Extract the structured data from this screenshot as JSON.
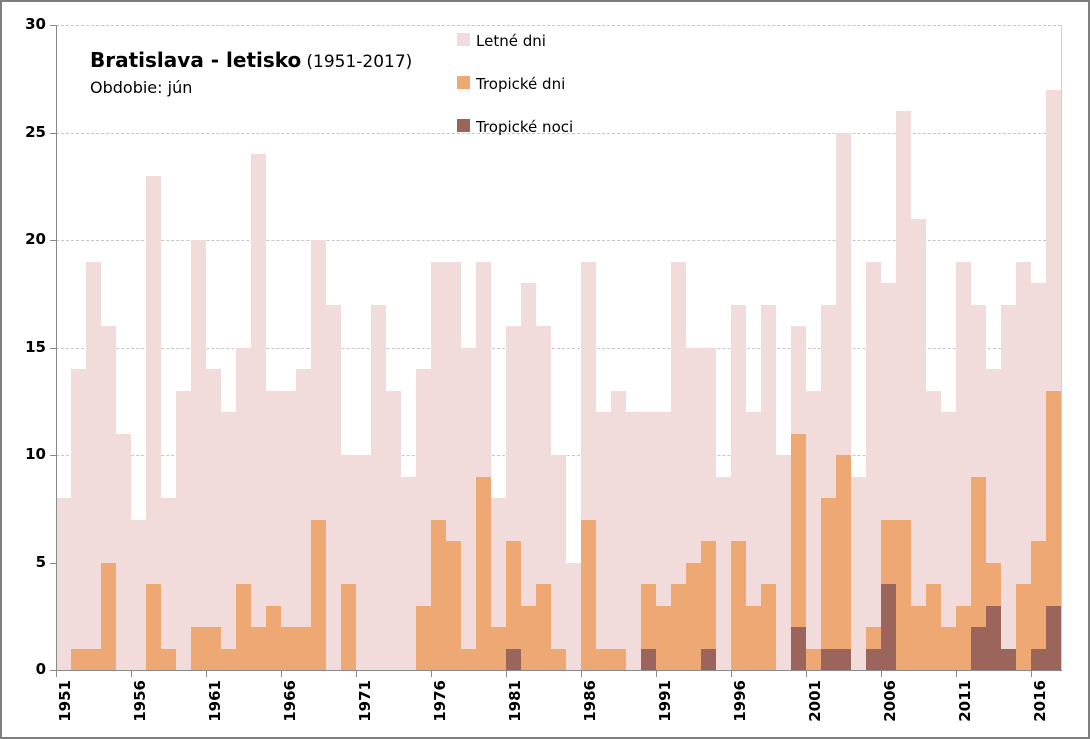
{
  "title": {
    "main": "Bratislava - letisko",
    "range": "(1951-2017)",
    "subtitle": "Obdobie: jún"
  },
  "legend": {
    "items": [
      {
        "label": "Letné dni",
        "color": "#f2dcdb"
      },
      {
        "label": "Tropické dni",
        "color": "#eea873"
      },
      {
        "label": "Tropické noci",
        "color": "#9b655c"
      }
    ]
  },
  "colors": {
    "letne": "#f2dcdb",
    "tropicke_dni": "#eea873",
    "tropicke_noci": "#9b655c",
    "gridline": "#c6c6c6",
    "axis": "#898989",
    "text": "#000000"
  },
  "chart_data": {
    "type": "bar",
    "overlay": true,
    "title": "Bratislava - letisko (1951-2017)",
    "subtitle": "Obdobie: jún",
    "xlabel": "",
    "ylabel": "",
    "ylim": [
      0,
      30
    ],
    "y_ticks": [
      0,
      5,
      10,
      15,
      20,
      25,
      30
    ],
    "x_tick_labels": [
      "1951",
      "1956",
      "1961",
      "1966",
      "1971",
      "1976",
      "1981",
      "1986",
      "1991",
      "1996",
      "2001",
      "2006",
      "2011",
      "2016"
    ],
    "x_tick_interval": 5,
    "grid": "horizontal-dashed",
    "legend_position": "top-center",
    "categories": [
      1951,
      1952,
      1953,
      1954,
      1955,
      1956,
      1957,
      1958,
      1959,
      1960,
      1961,
      1962,
      1963,
      1964,
      1965,
      1966,
      1967,
      1968,
      1969,
      1970,
      1971,
      1972,
      1973,
      1974,
      1975,
      1976,
      1977,
      1978,
      1979,
      1980,
      1981,
      1982,
      1983,
      1984,
      1985,
      1986,
      1987,
      1988,
      1989,
      1990,
      1991,
      1992,
      1993,
      1994,
      1995,
      1996,
      1997,
      1998,
      1999,
      2000,
      2001,
      2002,
      2003,
      2004,
      2005,
      2006,
      2007,
      2008,
      2009,
      2010,
      2011,
      2012,
      2013,
      2014,
      2015,
      2016,
      2017
    ],
    "series": [
      {
        "name": "Letné dni",
        "values": [
          8,
          14,
          19,
          16,
          11,
          7,
          23,
          8,
          13,
          20,
          14,
          12,
          15,
          24,
          13,
          13,
          14,
          20,
          17,
          10,
          10,
          17,
          13,
          9,
          14,
          19,
          19,
          15,
          19,
          8,
          16,
          18,
          16,
          10,
          5,
          19,
          12,
          13,
          12,
          12,
          12,
          19,
          15,
          15,
          9,
          17,
          12,
          17,
          10,
          16,
          13,
          17,
          25,
          9,
          19,
          18,
          26,
          21,
          13,
          12,
          19,
          17,
          14,
          17,
          19,
          18,
          27
        ]
      },
      {
        "name": "Tropické dni",
        "values": [
          0,
          1,
          1,
          5,
          0,
          0,
          4,
          1,
          0,
          2,
          2,
          1,
          4,
          2,
          3,
          2,
          2,
          7,
          0,
          4,
          0,
          0,
          0,
          0,
          3,
          7,
          6,
          1,
          9,
          2,
          6,
          3,
          4,
          1,
          0,
          7,
          1,
          1,
          0,
          4,
          3,
          4,
          5,
          6,
          0,
          6,
          3,
          4,
          0,
          11,
          1,
          8,
          10,
          0,
          2,
          7,
          7,
          3,
          4,
          2,
          3,
          9,
          5,
          1,
          4,
          6,
          13
        ]
      },
      {
        "name": "Tropické noci",
        "values": [
          0,
          0,
          0,
          0,
          0,
          0,
          0,
          0,
          0,
          0,
          0,
          0,
          0,
          0,
          0,
          0,
          0,
          0,
          0,
          0,
          0,
          0,
          0,
          0,
          0,
          0,
          0,
          0,
          0,
          0,
          1,
          0,
          0,
          0,
          0,
          0,
          0,
          0,
          0,
          1,
          0,
          0,
          0,
          1,
          0,
          0,
          0,
          0,
          0,
          2,
          0,
          1,
          1,
          0,
          1,
          4,
          0,
          0,
          0,
          0,
          0,
          2,
          3,
          1,
          0,
          1,
          3
        ]
      }
    ]
  }
}
